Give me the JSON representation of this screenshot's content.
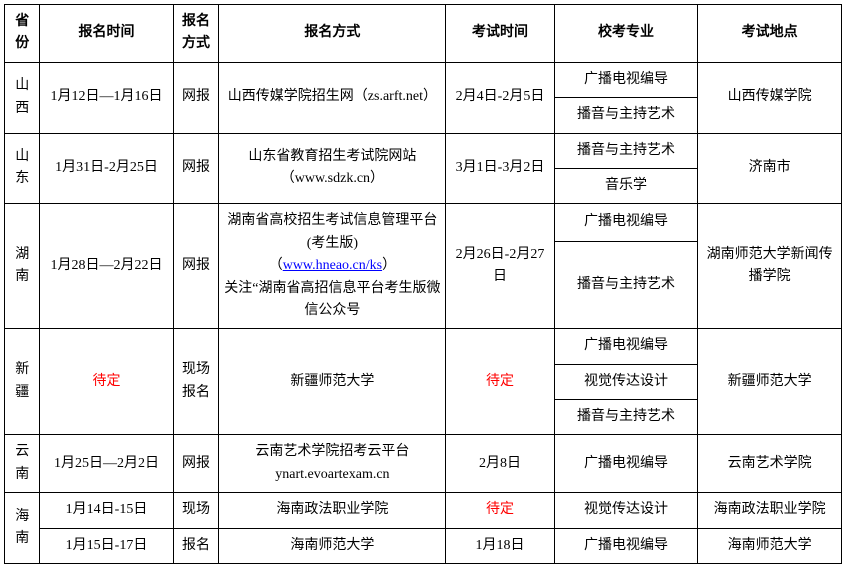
{
  "headers": [
    "省份",
    "报名时间",
    "报名方式",
    "报名方式",
    "考试时间",
    "校考专业",
    "考试地点"
  ],
  "provinces": {
    "sx": {
      "name": "山西",
      "reg_time": "1月12日—1月16日",
      "method": "网报",
      "reg_way": "山西传媒学院招生网（zs.arft.net）",
      "exam_time": "2月4日-2月5日",
      "majors": [
        "广播电视编导",
        "播音与主持艺术"
      ],
      "location": "山西传媒学院"
    },
    "sd": {
      "name": "山东",
      "reg_time": "1月31日-2月25日",
      "method": "网报",
      "reg_way": "山东省教育招生考试院网站（www.sdzk.cn）",
      "exam_time": "3月1日-3月2日",
      "majors": [
        "播音与主持艺术",
        "音乐学"
      ],
      "location": "济南市"
    },
    "hun": {
      "name": "湖南",
      "reg_time": "1月28日—2月22日",
      "method": "网报",
      "reg_way_pre": "湖南省高校招生考试信息管理平台(考生版)",
      "reg_way_link": "www.hneao.cn/ks",
      "reg_way_post": "关注“湖南省高招信息平台考生版微信公众号",
      "exam_time": "2月26日-2月27日",
      "majors": [
        "广播电视编导",
        "播音与主持艺术"
      ],
      "location": "湖南师范大学新闻传播学院"
    },
    "xj": {
      "name": "新疆",
      "reg_time": "待定",
      "method": "现场报名",
      "reg_way": "新疆师范大学",
      "exam_time": "待定",
      "majors": [
        "广播电视编导",
        "视觉传达设计",
        "播音与主持艺术"
      ],
      "location": "新疆师范大学"
    },
    "yn": {
      "name": "云南",
      "reg_time": "1月25日—2月2日",
      "method": "网报",
      "reg_way": "云南艺术学院招考云平台ynart.evoartexam.cn",
      "exam_time": "2月8日",
      "majors": [
        "广播电视编导"
      ],
      "location": "云南艺术学院"
    },
    "hain": {
      "name": "海南",
      "row1": {
        "reg_time": "1月14日-15日",
        "method": "现场",
        "reg_way": "海南政法职业学院",
        "exam_time": "待定",
        "major": "视觉传达设计",
        "location": "海南政法职业学院"
      },
      "row2": {
        "reg_time": "1月15日-17日",
        "method": "报名",
        "reg_way": "海南师范大学",
        "exam_time": "1月18日",
        "major": "广播电视编导",
        "location": "海南师范大学"
      }
    }
  }
}
